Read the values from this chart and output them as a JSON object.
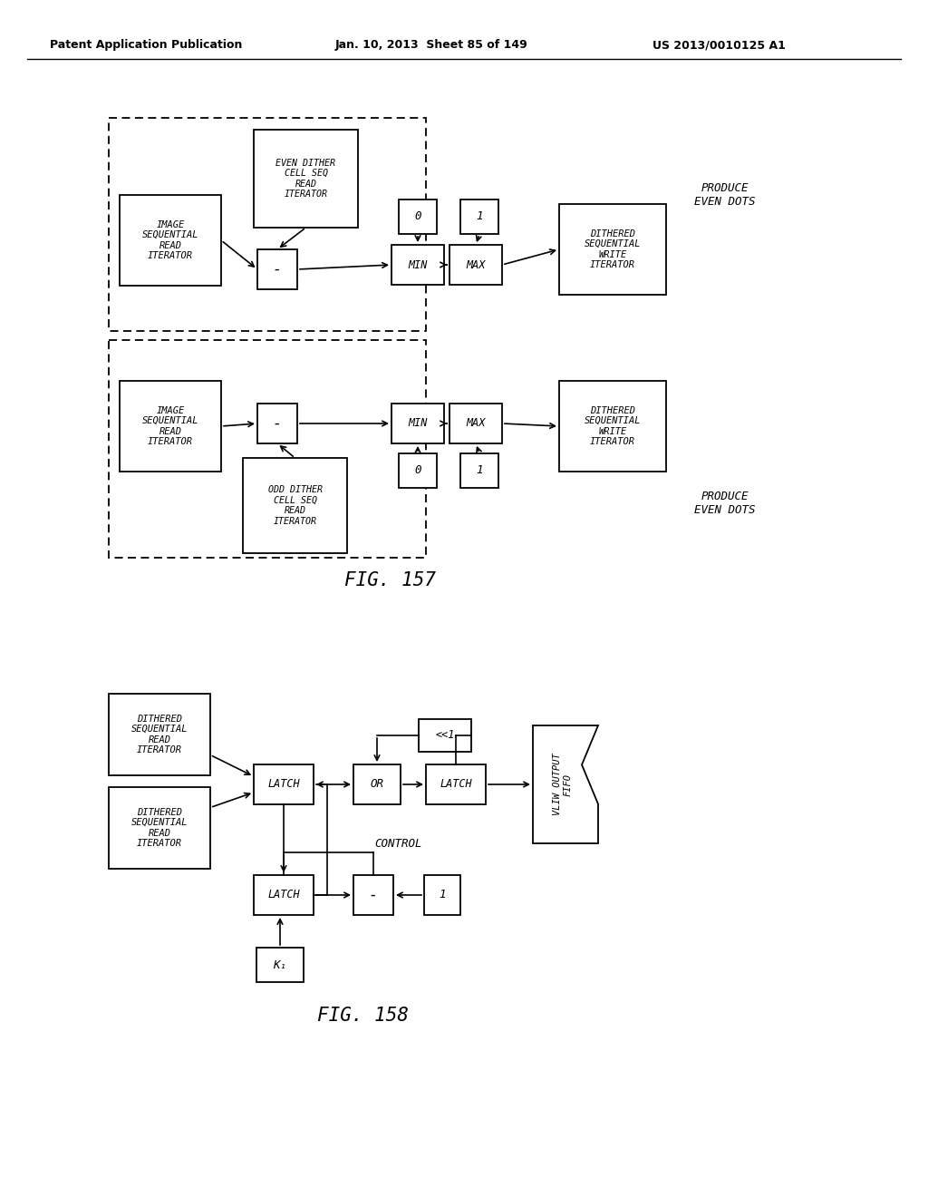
{
  "header_left": "Patent Application Publication",
  "header_mid": "Jan. 10, 2013  Sheet 85 of 149",
  "header_right": "US 2013/0010125 A1",
  "fig157_label": "FIG. 157",
  "fig158_label": "FIG. 158",
  "bg_color": "#ffffff"
}
